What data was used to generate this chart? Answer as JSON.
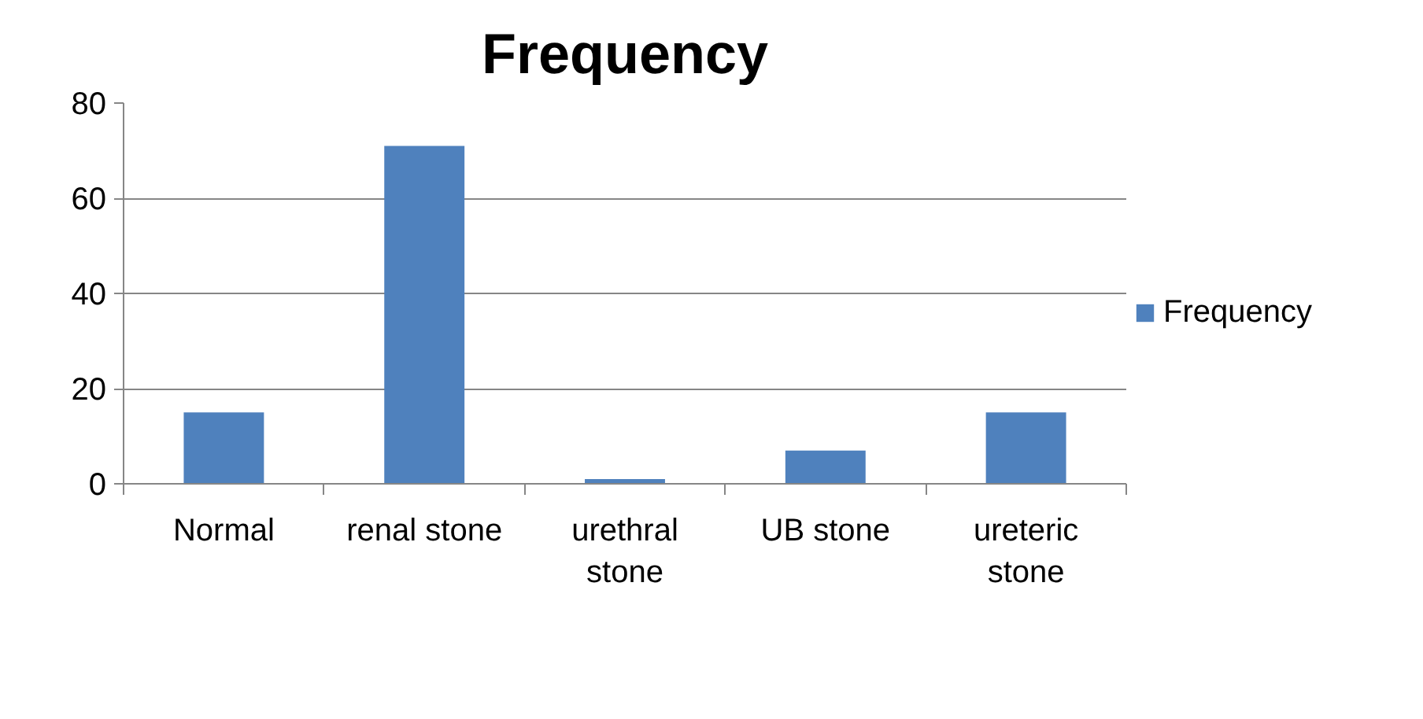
{
  "chart_data": {
    "type": "bar",
    "title": "Frequency",
    "categories": [
      "Normal",
      "renal stone",
      "urethral stone",
      "UB stone",
      "ureteric stone"
    ],
    "series": [
      {
        "name": "Frequency",
        "color": "#4f81bd",
        "values": [
          15,
          71,
          1,
          7,
          15
        ]
      }
    ],
    "ylim": [
      0,
      80
    ],
    "yticks": [
      0,
      20,
      40,
      60,
      80
    ],
    "grid": "y",
    "legend": "right"
  }
}
